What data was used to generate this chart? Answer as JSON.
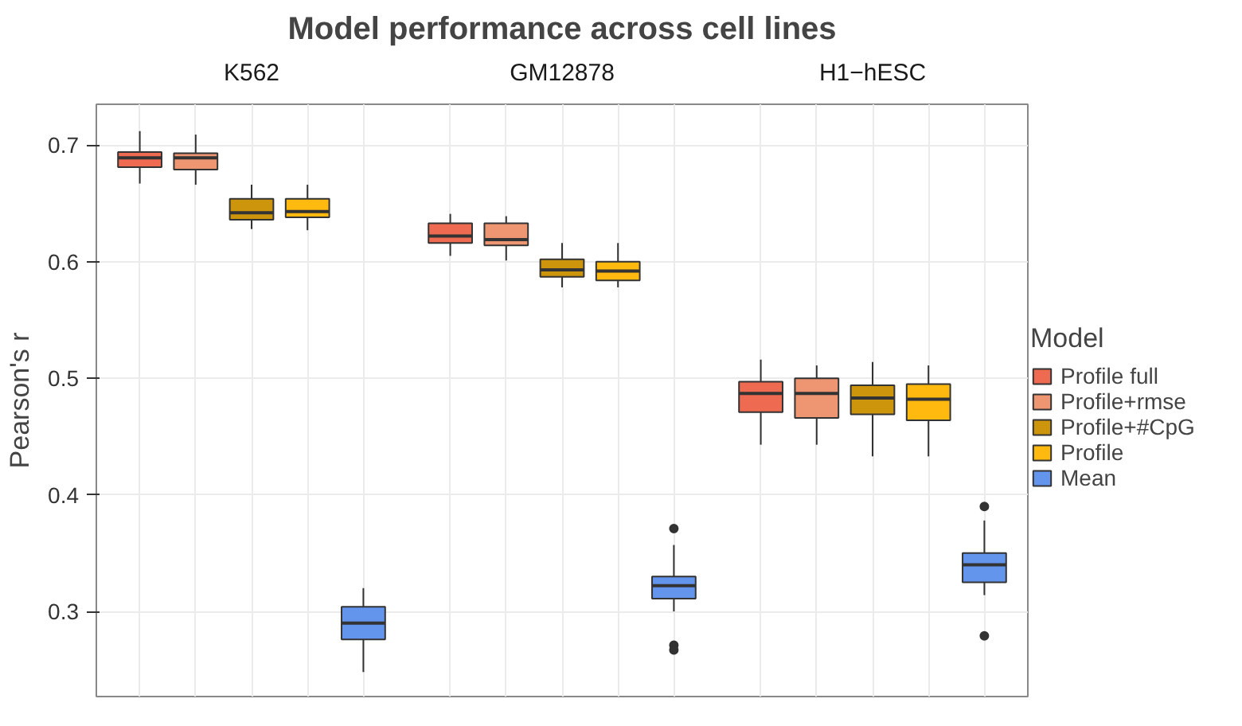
{
  "chart_data": {
    "type": "box",
    "title": "Model performance across cell lines",
    "ylabel": "Pearson's r",
    "categories": [
      "K562",
      "GM12878",
      "H1−hESC"
    ],
    "ylim": [
      0.227,
      0.735
    ],
    "yticks": [
      0.3,
      0.4,
      0.5,
      0.6,
      0.7
    ],
    "grid": true,
    "legend": "right",
    "legend_title": "Model",
    "series": [
      {
        "name": "Profile full",
        "color": "#ee6a50",
        "boxes": [
          {
            "low": 0.667,
            "q1": 0.681,
            "median": 0.689,
            "q3": 0.694,
            "high": 0.712
          },
          {
            "low": 0.605,
            "q1": 0.616,
            "median": 0.622,
            "q3": 0.633,
            "high": 0.641
          },
          {
            "low": 0.443,
            "q1": 0.471,
            "median": 0.487,
            "q3": 0.497,
            "high": 0.516
          }
        ]
      },
      {
        "name": "Profile+rmse",
        "color": "#ee9572",
        "boxes": [
          {
            "low": 0.666,
            "q1": 0.679,
            "median": 0.689,
            "q3": 0.693,
            "high": 0.709
          },
          {
            "low": 0.601,
            "q1": 0.614,
            "median": 0.619,
            "q3": 0.633,
            "high": 0.639
          },
          {
            "low": 0.443,
            "q1": 0.466,
            "median": 0.487,
            "q3": 0.5,
            "high": 0.511
          }
        ]
      },
      {
        "name": "Profile+#CpG",
        "color": "#cd950c",
        "boxes": [
          {
            "low": 0.628,
            "q1": 0.636,
            "median": 0.642,
            "q3": 0.654,
            "high": 0.666
          },
          {
            "low": 0.578,
            "q1": 0.587,
            "median": 0.593,
            "q3": 0.602,
            "high": 0.616
          },
          {
            "low": 0.433,
            "q1": 0.469,
            "median": 0.483,
            "q3": 0.494,
            "high": 0.514
          }
        ]
      },
      {
        "name": "Profile",
        "color": "#ffb90f",
        "boxes": [
          {
            "low": 0.627,
            "q1": 0.638,
            "median": 0.643,
            "q3": 0.654,
            "high": 0.666
          },
          {
            "low": 0.578,
            "q1": 0.584,
            "median": 0.592,
            "q3": 0.6,
            "high": 0.616
          },
          {
            "low": 0.433,
            "q1": 0.464,
            "median": 0.482,
            "q3": 0.495,
            "high": 0.511
          }
        ]
      },
      {
        "name": "Mean",
        "color": "#6495ed",
        "boxes": [
          {
            "low": 0.248,
            "q1": 0.276,
            "median": 0.29,
            "q3": 0.304,
            "high": 0.32
          },
          {
            "low": 0.3,
            "q1": 0.311,
            "median": 0.322,
            "q3": 0.33,
            "high": 0.357,
            "outliers": [
              0.371,
              0.271,
              0.267
            ]
          },
          {
            "low": 0.314,
            "q1": 0.325,
            "median": 0.34,
            "q3": 0.35,
            "high": 0.378,
            "outliers": [
              0.39,
              0.279
            ]
          }
        ]
      }
    ]
  }
}
